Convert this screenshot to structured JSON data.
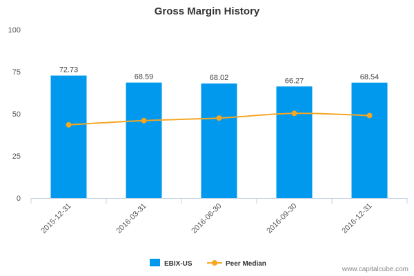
{
  "chart_data": {
    "type": "bar",
    "title": "Gross Margin History",
    "categories": [
      "2015-12-31",
      "2016-03-31",
      "2016-06-30",
      "2016-09-30",
      "2016-12-31"
    ],
    "series": [
      {
        "name": "EBIX-US",
        "type": "bar",
        "color": "#0099ee",
        "values": [
          72.73,
          68.59,
          68.02,
          66.27,
          68.54
        ],
        "labels": [
          "72.73",
          "68.59",
          "68.02",
          "66.27",
          "68.54"
        ]
      },
      {
        "name": "Peer Median",
        "type": "line",
        "color": "#f5a623",
        "values": [
          43.5,
          46.0,
          47.5,
          50.3,
          49.0
        ]
      }
    ],
    "ylim": [
      0,
      100
    ],
    "yticks": [
      0,
      25,
      50,
      75,
      100
    ],
    "ytick_labels": [
      "0",
      "25",
      "50",
      "75",
      "100"
    ],
    "legend_position": "bottom-center",
    "grid": false
  },
  "credit": "www.capitalcube.com"
}
